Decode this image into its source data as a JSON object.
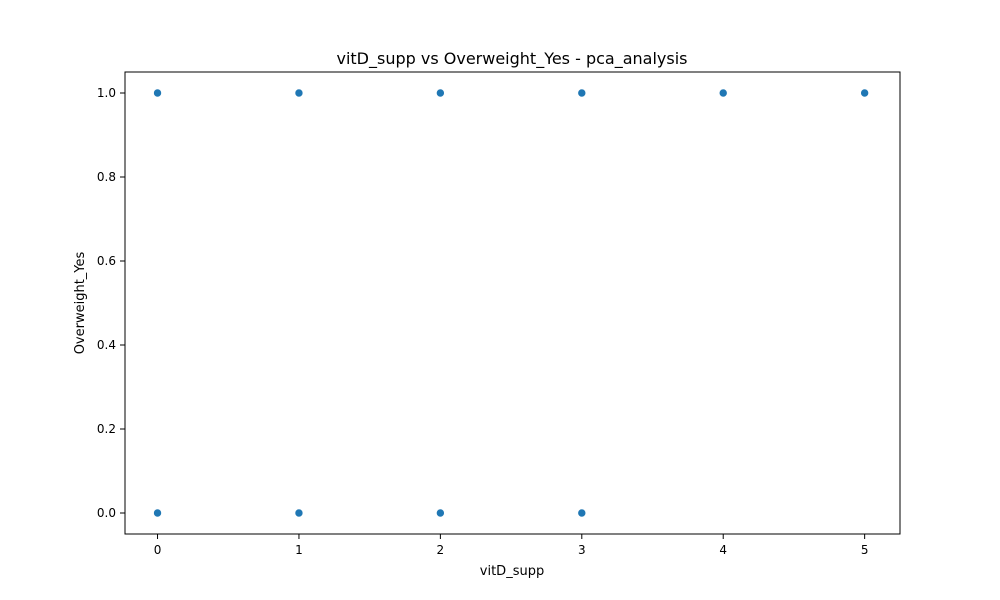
{
  "chart_data": {
    "type": "scatter",
    "title": "vitD_supp vs Overweight_Yes - pca_analysis",
    "xlabel": "vitD_supp",
    "ylabel": "Overweight_Yes",
    "xlim": [
      -0.23,
      5.25
    ],
    "ylim": [
      -0.05,
      1.05
    ],
    "x_ticks": [
      0,
      1,
      2,
      3,
      4,
      5
    ],
    "y_ticks": [
      0.0,
      0.2,
      0.4,
      0.6,
      0.8,
      1.0
    ],
    "x_tick_labels": [
      "0",
      "1",
      "2",
      "3",
      "4",
      "5"
    ],
    "y_tick_labels": [
      "0.0",
      "0.2",
      "0.4",
      "0.6",
      "0.8",
      "1.0"
    ],
    "grid": false,
    "marker_color": "#1f77b4",
    "points": [
      {
        "x": 0,
        "y": 1.0
      },
      {
        "x": 1,
        "y": 1.0
      },
      {
        "x": 2,
        "y": 1.0
      },
      {
        "x": 3,
        "y": 1.0
      },
      {
        "x": 4,
        "y": 1.0
      },
      {
        "x": 5,
        "y": 1.0
      },
      {
        "x": 0,
        "y": 0.0
      },
      {
        "x": 1,
        "y": 0.0
      },
      {
        "x": 2,
        "y": 0.0
      },
      {
        "x": 3,
        "y": 0.0
      }
    ]
  }
}
